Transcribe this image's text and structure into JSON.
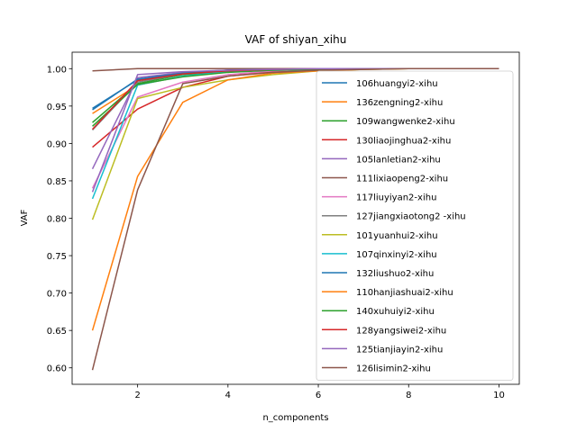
{
  "chart_data": {
    "type": "line",
    "title": "VAF of shiyan_xihu",
    "xlabel": "n_components",
    "ylabel": "VAF",
    "xlim": [
      0.55,
      10.45
    ],
    "ylim": [
      0.578,
      1.022
    ],
    "xticks": [
      2,
      4,
      6,
      8,
      10
    ],
    "yticks": [
      0.6,
      0.65,
      0.7,
      0.75,
      0.8,
      0.85,
      0.9,
      0.95,
      1.0
    ],
    "legend_position": "upper-right",
    "grid": false,
    "x": [
      1,
      2,
      3,
      4,
      5,
      6,
      7,
      8,
      9,
      10
    ],
    "series": [
      {
        "name": "106huangyi2-xihu",
        "color": "#1f77b4",
        "values": [
          0.947,
          0.985,
          0.995,
          0.998,
          0.999,
          1.0,
          1.0,
          1.0,
          1.0,
          1.0
        ]
      },
      {
        "name": "136zengning2-xihu",
        "color": "#ff7f0e",
        "values": [
          0.94,
          0.978,
          0.99,
          0.996,
          0.998,
          0.999,
          1.0,
          1.0,
          1.0,
          1.0
        ]
      },
      {
        "name": "109wangwenke2-xihu",
        "color": "#2ca02c",
        "values": [
          0.928,
          0.98,
          0.992,
          0.996,
          0.998,
          0.999,
          1.0,
          1.0,
          1.0,
          1.0
        ]
      },
      {
        "name": "130liaojinghua2-xihu",
        "color": "#d62728",
        "values": [
          0.895,
          0.946,
          0.975,
          0.99,
          0.996,
          0.999,
          1.0,
          1.0,
          1.0,
          1.0
        ]
      },
      {
        "name": "105lanletian2-xihu",
        "color": "#9467bd",
        "values": [
          0.866,
          0.988,
          0.995,
          0.998,
          0.999,
          1.0,
          1.0,
          1.0,
          1.0,
          1.0
        ]
      },
      {
        "name": "111lixiaopeng2-xihu",
        "color": "#8c564b",
        "values": [
          0.997,
          1.0,
          1.0,
          1.0,
          1.0,
          1.0,
          1.0,
          1.0,
          1.0,
          1.0
        ]
      },
      {
        "name": "117liuyiyan2-xihu",
        "color": "#e377c2",
        "values": [
          0.84,
          0.962,
          0.982,
          0.992,
          0.997,
          0.999,
          1.0,
          1.0,
          1.0,
          1.0
        ]
      },
      {
        "name": "127jiangxiaotong2 -xihu",
        "color": "#7f7f7f",
        "values": [
          0.918,
          0.982,
          0.993,
          0.997,
          0.999,
          1.0,
          1.0,
          1.0,
          1.0,
          1.0
        ]
      },
      {
        "name": "101yuanhui2-xihu",
        "color": "#bcbd22",
        "values": [
          0.798,
          0.96,
          0.975,
          0.985,
          0.992,
          0.997,
          0.999,
          1.0,
          1.0,
          1.0
        ]
      },
      {
        "name": "107qinxinyi2-xihu",
        "color": "#17becf",
        "values": [
          0.826,
          0.978,
          0.99,
          0.996,
          0.998,
          0.999,
          1.0,
          1.0,
          1.0,
          1.0
        ]
      },
      {
        "name": "132liushuo2-xihu",
        "color": "#1f77b4",
        "values": [
          0.945,
          0.986,
          0.994,
          0.998,
          0.999,
          1.0,
          1.0,
          1.0,
          1.0,
          1.0
        ]
      },
      {
        "name": "110hanjiashuai2-xihu",
        "color": "#ff7f0e",
        "values": [
          0.65,
          0.856,
          0.955,
          0.985,
          0.994,
          0.997,
          0.999,
          1.0,
          1.0,
          1.0
        ]
      },
      {
        "name": "140xuhuiyi2-xihu",
        "color": "#2ca02c",
        "values": [
          0.923,
          0.979,
          0.989,
          0.995,
          0.998,
          0.999,
          1.0,
          1.0,
          1.0,
          1.0
        ]
      },
      {
        "name": "128yangsiwei2-xihu",
        "color": "#d62728",
        "values": [
          0.919,
          0.984,
          0.993,
          0.997,
          0.999,
          1.0,
          1.0,
          1.0,
          1.0,
          1.0
        ]
      },
      {
        "name": "125tianjiayin2-xihu",
        "color": "#9467bd",
        "values": [
          0.835,
          0.992,
          0.996,
          0.998,
          0.999,
          1.0,
          1.0,
          1.0,
          1.0,
          1.0
        ]
      },
      {
        "name": "126lisimin2-xihu",
        "color": "#8c564b",
        "values": [
          0.597,
          0.838,
          0.98,
          0.99,
          0.995,
          0.998,
          0.999,
          1.0,
          1.0,
          1.0
        ]
      }
    ]
  }
}
